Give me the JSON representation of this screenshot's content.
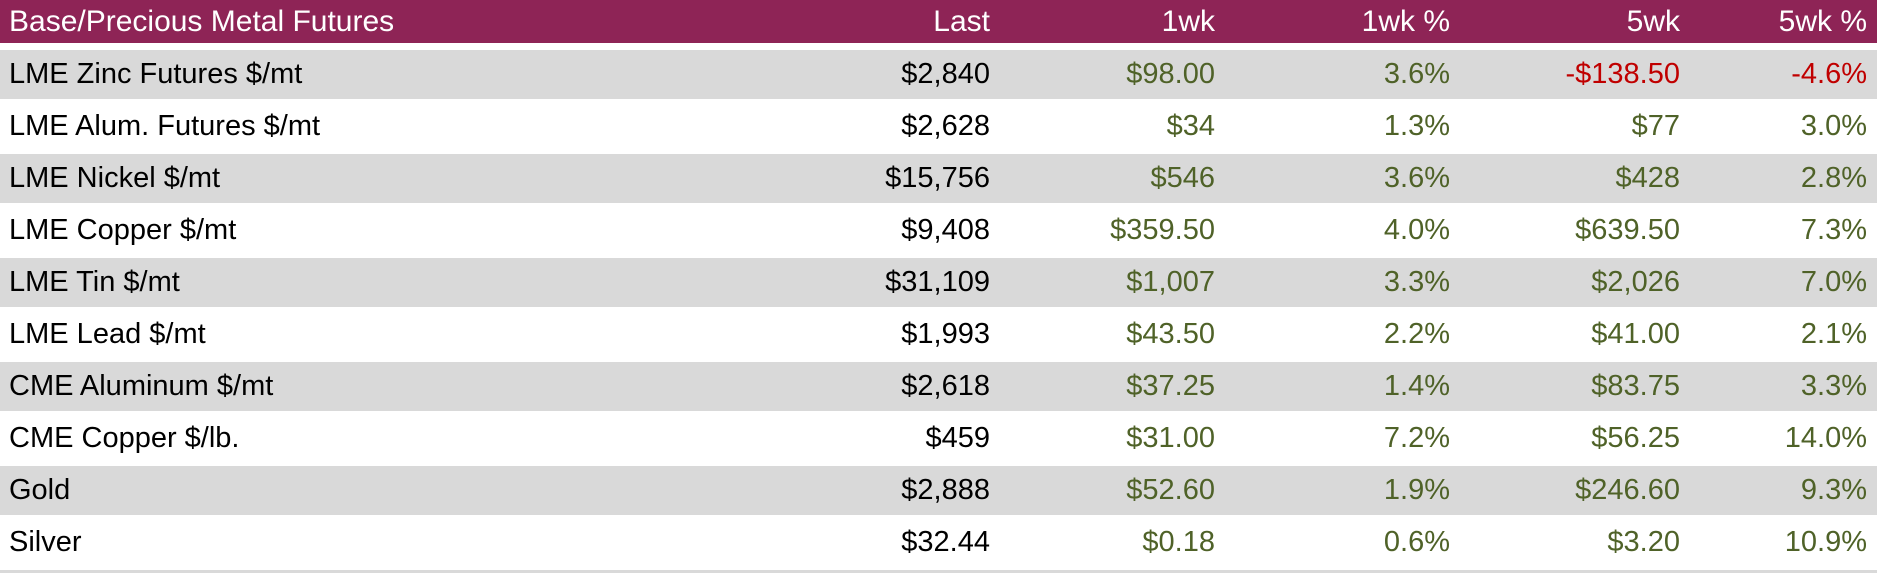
{
  "colors": {
    "header_bg": "#8E2456",
    "header_text": "#FFFFFF",
    "row_alt_bg": "#D9D9D9",
    "row_bg": "#FFFFFF",
    "body_text": "#000000",
    "positive": "#4F6228",
    "negative": "#C00000"
  },
  "table": {
    "title": "Base/Precious Metal Futures",
    "columns": [
      "Last",
      "1wk",
      "1wk %",
      "5wk",
      "5wk %"
    ],
    "rows": [
      [
        "LME Zinc Futures $/mt",
        "$2,840",
        "$98.00",
        "3.6%",
        "-$138.50",
        "-4.6%"
      ],
      [
        "LME Alum. Futures $/mt",
        "$2,628",
        "$34",
        "1.3%",
        "$77",
        "3.0%"
      ],
      [
        "LME Nickel $/mt",
        "$15,756",
        "$546",
        "3.6%",
        "$428",
        "2.8%"
      ],
      [
        "LME Copper $/mt",
        "$9,408",
        "$359.50",
        "4.0%",
        "$639.50",
        "7.3%"
      ],
      [
        "LME Tin $/mt",
        "$31,109",
        "$1,007",
        "3.3%",
        "$2,026",
        "7.0%"
      ],
      [
        "LME Lead $/mt",
        "$1,993",
        "$43.50",
        "2.2%",
        "$41.00",
        "2.1%"
      ],
      [
        "CME Aluminum $/mt",
        "$2,618",
        "$37.25",
        "1.4%",
        "$83.75",
        "3.3%"
      ],
      [
        "CME Copper $/lb.",
        "$459",
        "$31.00",
        "7.2%",
        "$56.25",
        "14.0%"
      ],
      [
        "Gold",
        "$2,888",
        "$52.60",
        "1.9%",
        "$246.60",
        "9.3%"
      ],
      [
        "Silver",
        "$32.44",
        "$0.18",
        "0.6%",
        "$3.20",
        "10.9%"
      ]
    ]
  },
  "chart_data": {
    "type": "table",
    "title": "Base/Precious Metal Futures",
    "columns": [
      "Last",
      "1wk",
      "1wk %",
      "5wk",
      "5wk %"
    ],
    "rows": [
      {
        "instrument": "LME Zinc Futures $/mt",
        "last": 2840,
        "wk1": 98.0,
        "wk1_pct": 3.6,
        "wk5": -138.5,
        "wk5_pct": -4.6
      },
      {
        "instrument": "LME Alum. Futures $/mt",
        "last": 2628,
        "wk1": 34,
        "wk1_pct": 1.3,
        "wk5": 77,
        "wk5_pct": 3.0
      },
      {
        "instrument": "LME Nickel $/mt",
        "last": 15756,
        "wk1": 546,
        "wk1_pct": 3.6,
        "wk5": 428,
        "wk5_pct": 2.8
      },
      {
        "instrument": "LME Copper $/mt",
        "last": 9408,
        "wk1": 359.5,
        "wk1_pct": 4.0,
        "wk5": 639.5,
        "wk5_pct": 7.3
      },
      {
        "instrument": "LME Tin $/mt",
        "last": 31109,
        "wk1": 1007,
        "wk1_pct": 3.3,
        "wk5": 2026,
        "wk5_pct": 7.0
      },
      {
        "instrument": "LME Lead $/mt",
        "last": 1993,
        "wk1": 43.5,
        "wk1_pct": 2.2,
        "wk5": 41.0,
        "wk5_pct": 2.1
      },
      {
        "instrument": "CME Aluminum $/mt",
        "last": 2618,
        "wk1": 37.25,
        "wk1_pct": 1.4,
        "wk5": 83.75,
        "wk5_pct": 3.3
      },
      {
        "instrument": "CME Copper $/lb.",
        "last": 459,
        "wk1": 31.0,
        "wk1_pct": 7.2,
        "wk5": 56.25,
        "wk5_pct": 14.0
      },
      {
        "instrument": "Gold",
        "last": 2888,
        "wk1": 52.6,
        "wk1_pct": 1.9,
        "wk5": 246.6,
        "wk5_pct": 9.3
      },
      {
        "instrument": "Silver",
        "last": 32.44,
        "wk1": 0.18,
        "wk1_pct": 0.6,
        "wk5": 3.2,
        "wk5_pct": 10.9
      }
    ]
  }
}
